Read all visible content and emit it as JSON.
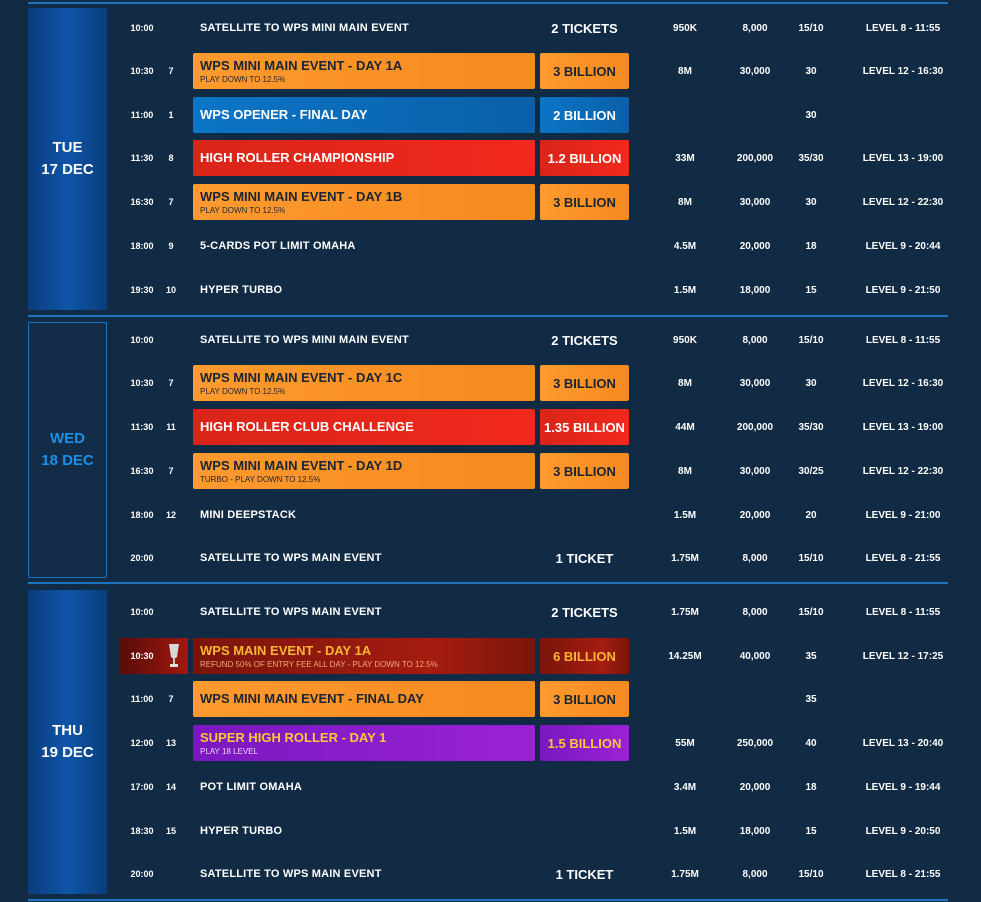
{
  "days": [
    {
      "label1": "TUE",
      "label2": "17 DEC"
    },
    {
      "label1": "WED",
      "label2": "18 DEC"
    },
    {
      "label1": "THU",
      "label2": "19 DEC"
    }
  ],
  "rows": [
    {
      "time": "10:00",
      "num": "",
      "name": "SATELLITE TO WPS MINI MAIN EVENT",
      "sub": "",
      "prize": "2 TICKETS",
      "gtd": "950K",
      "stack": "8,000",
      "levels": "15/10",
      "late": "LEVEL 8 - 11:55",
      "style": "plain"
    },
    {
      "time": "10:30",
      "num": "7",
      "name": "WPS MINI MAIN EVENT - DAY 1A",
      "sub": "PLAY DOWN TO 12.5%",
      "prize": "3 BILLION",
      "gtd": "8M",
      "stack": "30,000",
      "levels": "30",
      "late": "LEVEL 12 - 16:30",
      "style": "orange"
    },
    {
      "time": "11:00",
      "num": "1",
      "name": "WPS OPENER - FINAL DAY",
      "sub": "",
      "prize": "2 BILLION",
      "gtd": "",
      "stack": "",
      "levels": "30",
      "late": "",
      "style": "blueb"
    },
    {
      "time": "11:30",
      "num": "8",
      "name": "HIGH ROLLER CHAMPIONSHIP",
      "sub": "",
      "prize": "1.2 BILLION",
      "gtd": "33M",
      "stack": "200,000",
      "levels": "35/30",
      "late": "LEVEL 13 - 19:00",
      "style": "red"
    },
    {
      "time": "16:30",
      "num": "7",
      "name": "WPS MINI MAIN EVENT - DAY 1B",
      "sub": "PLAY DOWN TO 12.5%",
      "prize": "3 BILLION",
      "gtd": "8M",
      "stack": "30,000",
      "levels": "30",
      "late": "LEVEL 12 - 22:30",
      "style": "orange"
    },
    {
      "time": "18:00",
      "num": "9",
      "name": "5-CARDS POT LIMIT OMAHA",
      "sub": "",
      "prize": "",
      "gtd": "4.5M",
      "stack": "20,000",
      "levels": "18",
      "late": "LEVEL 9 - 20:44",
      "style": "plain"
    },
    {
      "time": "19:30",
      "num": "10",
      "name": "HYPER TURBO",
      "sub": "",
      "prize": "",
      "gtd": "1.5M",
      "stack": "18,000",
      "levels": "15",
      "late": "LEVEL 9 - 21:50",
      "style": "plain"
    },
    {
      "time": "10:00",
      "num": "",
      "name": "SATELLITE TO WPS MINI MAIN EVENT",
      "sub": "",
      "prize": "2 TICKETS",
      "gtd": "950K",
      "stack": "8,000",
      "levels": "15/10",
      "late": "LEVEL 8 - 11:55",
      "style": "plain"
    },
    {
      "time": "10:30",
      "num": "7",
      "name": "WPS MINI MAIN EVENT - DAY 1C",
      "sub": "PLAY DOWN TO 12.5%",
      "prize": "3 BILLION",
      "gtd": "8M",
      "stack": "30,000",
      "levels": "30",
      "late": "LEVEL 12 - 16:30",
      "style": "orange"
    },
    {
      "time": "11:30",
      "num": "11",
      "name": "HIGH ROLLER CLUB CHALLENGE",
      "sub": "",
      "prize": "1.35 BILLION",
      "gtd": "44M",
      "stack": "200,000",
      "levels": "35/30",
      "late": "LEVEL 13 - 19:00",
      "style": "red"
    },
    {
      "time": "16:30",
      "num": "7",
      "name": "WPS MINI MAIN EVENT - DAY 1D",
      "sub": "TURBO - PLAY DOWN TO 12.5%",
      "prize": "3 BILLION",
      "gtd": "8M",
      "stack": "30,000",
      "levels": "30/25",
      "late": "LEVEL 12 - 22:30",
      "style": "orange"
    },
    {
      "time": "18:00",
      "num": "12",
      "name": "MINI DEEPSTACK",
      "sub": "",
      "prize": "",
      "gtd": "1.5M",
      "stack": "20,000",
      "levels": "20",
      "late": "LEVEL 9 - 21:00",
      "style": "plain"
    },
    {
      "time": "20:00",
      "num": "",
      "name": "SATELLITE TO WPS MAIN EVENT",
      "sub": "",
      "prize": "1 TICKET",
      "gtd": "1.75M",
      "stack": "8,000",
      "levels": "15/10",
      "late": "LEVEL 8 - 21:55",
      "style": "plain"
    },
    {
      "time": "10:00",
      "num": "",
      "name": "SATELLITE TO WPS MAIN EVENT",
      "sub": "",
      "prize": "2 TICKETS",
      "gtd": "1.75M",
      "stack": "8,000",
      "levels": "15/10",
      "late": "LEVEL 8 - 11:55",
      "style": "plain"
    },
    {
      "time": "10:30",
      "num": "",
      "name": "WPS MAIN EVENT - DAY 1A",
      "sub": "REFUND 50% OF ENTRY FEE ALL DAY - PLAY DOWN TO 12.5%",
      "prize": "6 BILLION",
      "gtd": "14.25M",
      "stack": "40,000",
      "levels": "35",
      "late": "LEVEL 12 - 17:25",
      "style": "main"
    },
    {
      "time": "11:00",
      "num": "7",
      "name": "WPS MINI MAIN EVENT - FINAL DAY",
      "sub": "",
      "prize": "3 BILLION",
      "gtd": "",
      "stack": "",
      "levels": "35",
      "late": "",
      "style": "orange"
    },
    {
      "time": "12:00",
      "num": "13",
      "name": "SUPER HIGH ROLLER - DAY 1",
      "sub": "PLAY 18 LEVEL",
      "prize": "1.5 BILLION",
      "gtd": "55M",
      "stack": "250,000",
      "levels": "40",
      "late": "LEVEL 13 - 20:40",
      "style": "purple"
    },
    {
      "time": "17:00",
      "num": "14",
      "name": "POT LIMIT OMAHA",
      "sub": "",
      "prize": "",
      "gtd": "3.4M",
      "stack": "20,000",
      "levels": "18",
      "late": "LEVEL 9 - 19:44",
      "style": "plain"
    },
    {
      "time": "18:30",
      "num": "15",
      "name": "HYPER TURBO",
      "sub": "",
      "prize": "",
      "gtd": "1.5M",
      "stack": "18,000",
      "levels": "15",
      "late": "LEVEL 9 - 20:50",
      "style": "plain"
    },
    {
      "time": "20:00",
      "num": "",
      "name": "SATELLITE TO WPS MAIN EVENT",
      "sub": "",
      "prize": "1 TICKET",
      "gtd": "1.75M",
      "stack": "8,000",
      "levels": "15/10",
      "late": "LEVEL 8 - 21:55",
      "style": "plain"
    }
  ]
}
